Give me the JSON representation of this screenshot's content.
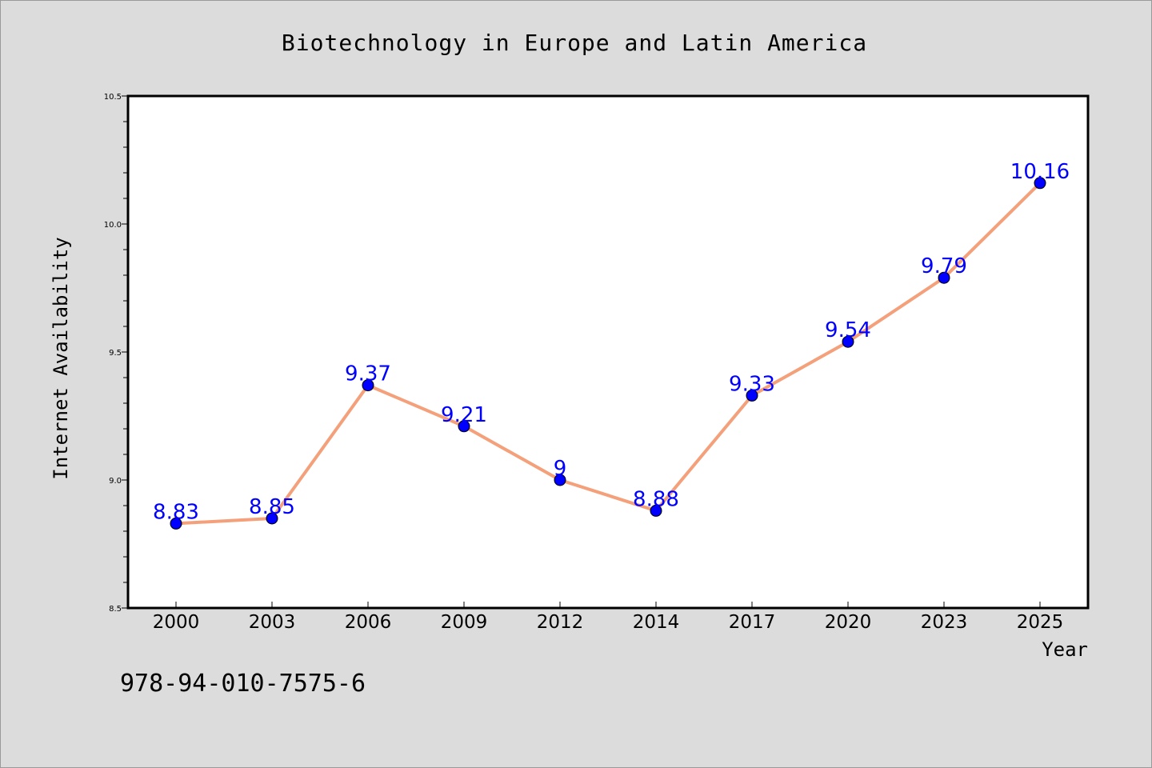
{
  "chart_data": {
    "type": "line",
    "title": "Biotechnology in Europe and Latin America",
    "xlabel": "Year",
    "ylabel": "Internet Availability",
    "categories": [
      "2000",
      "2003",
      "2006",
      "2009",
      "2012",
      "2014",
      "2017",
      "2020",
      "2023",
      "2025"
    ],
    "series": [
      {
        "values": [
          8.83,
          8.85,
          9.37,
          9.21,
          9,
          8.88,
          9.33,
          9.54,
          9.79,
          10.16
        ],
        "data_labels": [
          "8.83",
          "8.85",
          "9.37",
          "9.21",
          "9",
          "8.88",
          "9.33",
          "9.54",
          "9.79",
          "10.16"
        ],
        "line_color": "#f4a07a",
        "marker_color": "#0000ff"
      }
    ],
    "ylim": [
      8.5,
      10.5
    ],
    "yticks": [
      "8.5",
      "9.0",
      "9.5",
      "10.0",
      "10.5"
    ],
    "grid": false,
    "legend": "none"
  },
  "footer_text": "978-94-010-7575-6"
}
